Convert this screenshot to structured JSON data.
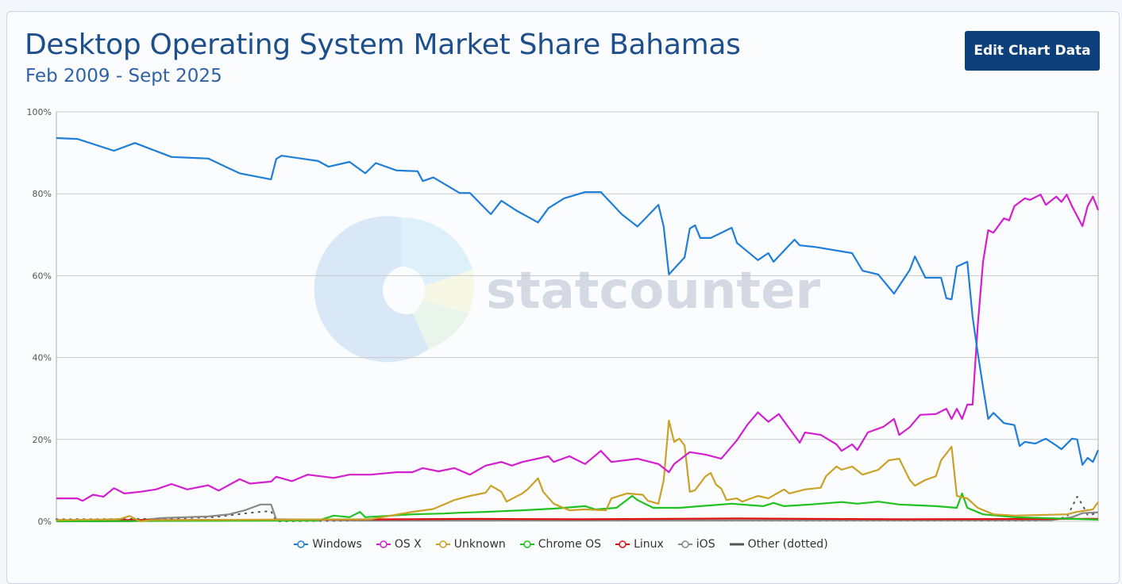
{
  "header": {
    "title": "Desktop Operating System Market Share Bahamas",
    "subtitle": "Feb 2009 - Sept 2025",
    "edit_button": "Edit Chart Data"
  },
  "watermark": {
    "logo_text": "statcounter"
  },
  "chart_data": {
    "type": "line",
    "title": "Desktop Operating System Market Share Bahamas",
    "subtitle": "Feb 2009 - Sept 2025",
    "x_unit": "month index from Feb 2009 (0) to Sept 2025 (199)",
    "xlim": [
      0,
      199
    ],
    "ylim": [
      0,
      100
    ],
    "yticks": [
      "0%",
      "20%",
      "40%",
      "60%",
      "80%",
      "100%"
    ],
    "ytick_values": [
      0,
      20,
      40,
      60,
      80,
      100
    ],
    "grid": true,
    "legend_position": "bottom",
    "series": [
      {
        "name": "Windows",
        "color": "#1f7fd8",
        "dotted": false,
        "points": [
          [
            0,
            93.6
          ],
          [
            4,
            93.4
          ],
          [
            11,
            90.5
          ],
          [
            15,
            92.4
          ],
          [
            22,
            89
          ],
          [
            29,
            88.6
          ],
          [
            33,
            86.2
          ],
          [
            35,
            85
          ],
          [
            41,
            83.5
          ],
          [
            42,
            88.5
          ],
          [
            43,
            89.3
          ],
          [
            50,
            88
          ],
          [
            52,
            86.6
          ],
          [
            56,
            87.8
          ],
          [
            59,
            85
          ],
          [
            61,
            87.5
          ],
          [
            65,
            85.7
          ],
          [
            69,
            85.5
          ],
          [
            70,
            83.1
          ],
          [
            72,
            84
          ],
          [
            77,
            80.2
          ],
          [
            79,
            80.2
          ],
          [
            83,
            75
          ],
          [
            85,
            78.3
          ],
          [
            88,
            75.8
          ],
          [
            92,
            73
          ],
          [
            94,
            76.5
          ],
          [
            97,
            78.9
          ],
          [
            101,
            80.4
          ],
          [
            104,
            80.4
          ],
          [
            108,
            75
          ],
          [
            111,
            72
          ],
          [
            115,
            77.3
          ],
          [
            116,
            72
          ],
          [
            117,
            60.3
          ],
          [
            120,
            64.5
          ],
          [
            121,
            71.5
          ],
          [
            122,
            72.3
          ],
          [
            123,
            69.2
          ],
          [
            125,
            69.2
          ],
          [
            129,
            71.7
          ],
          [
            130,
            68
          ],
          [
            134,
            63.8
          ],
          [
            136,
            65.5
          ],
          [
            137,
            63.4
          ],
          [
            141,
            68.8
          ],
          [
            142,
            67.4
          ],
          [
            145,
            67
          ],
          [
            152,
            65.5
          ],
          [
            154,
            61.2
          ],
          [
            157,
            60.3
          ],
          [
            160,
            55.6
          ],
          [
            163,
            61.4
          ],
          [
            164,
            64.7
          ],
          [
            166,
            59.5
          ],
          [
            169,
            59.5
          ],
          [
            170,
            54.5
          ],
          [
            171,
            54.2
          ],
          [
            172,
            62.2
          ],
          [
            174,
            63.4
          ],
          [
            175,
            50
          ],
          [
            176,
            41
          ],
          [
            177,
            32.8
          ],
          [
            178,
            25
          ],
          [
            179,
            26.5
          ],
          [
            181,
            24
          ],
          [
            183,
            23.5
          ],
          [
            184,
            18.4
          ],
          [
            185,
            19.4
          ],
          [
            187,
            19
          ],
          [
            189,
            20.2
          ],
          [
            191,
            18.5
          ],
          [
            192,
            17.6
          ],
          [
            194,
            20.2
          ],
          [
            195,
            20
          ],
          [
            196,
            13.8
          ],
          [
            197,
            15.5
          ],
          [
            198,
            14.5
          ],
          [
            199,
            17.4
          ]
        ]
      },
      {
        "name": "OS X",
        "color": "#d21fcf",
        "dotted": false,
        "points": [
          [
            0,
            5.6
          ],
          [
            4,
            5.6
          ],
          [
            5,
            5
          ],
          [
            7,
            6.5
          ],
          [
            9,
            6
          ],
          [
            11,
            8.1
          ],
          [
            13,
            6.8
          ],
          [
            16,
            7.2
          ],
          [
            19,
            7.8
          ],
          [
            22,
            9.1
          ],
          [
            25,
            7.8
          ],
          [
            29,
            8.8
          ],
          [
            31,
            7.5
          ],
          [
            35,
            10.3
          ],
          [
            37,
            9.2
          ],
          [
            41,
            9.7
          ],
          [
            42,
            10.9
          ],
          [
            45,
            9.8
          ],
          [
            48,
            11.4
          ],
          [
            53,
            10.6
          ],
          [
            56,
            11.4
          ],
          [
            60,
            11.4
          ],
          [
            65,
            12
          ],
          [
            68,
            12
          ],
          [
            70,
            13
          ],
          [
            73,
            12.2
          ],
          [
            76,
            13
          ],
          [
            79,
            11.4
          ],
          [
            82,
            13.6
          ],
          [
            85,
            14.5
          ],
          [
            87,
            13.6
          ],
          [
            89,
            14.5
          ],
          [
            94,
            15.9
          ],
          [
            95,
            14.5
          ],
          [
            98,
            15.9
          ],
          [
            101,
            14
          ],
          [
            104,
            17.2
          ],
          [
            106,
            14.5
          ],
          [
            111,
            15.3
          ],
          [
            115,
            14
          ],
          [
            117,
            12
          ],
          [
            118,
            14
          ],
          [
            121,
            16.9
          ],
          [
            124,
            16.3
          ],
          [
            127,
            15.3
          ],
          [
            130,
            19.8
          ],
          [
            132,
            23.6
          ],
          [
            134,
            26.6
          ],
          [
            136,
            24.3
          ],
          [
            138,
            26.2
          ],
          [
            140,
            22.7
          ],
          [
            142,
            19.2
          ],
          [
            143,
            21.7
          ],
          [
            146,
            21.1
          ],
          [
            149,
            18.8
          ],
          [
            150,
            17.2
          ],
          [
            152,
            18.8
          ],
          [
            153,
            17.4
          ],
          [
            155,
            21.7
          ],
          [
            158,
            23.1
          ],
          [
            160,
            25
          ],
          [
            161,
            21.1
          ],
          [
            163,
            23
          ],
          [
            165,
            26
          ],
          [
            168,
            26.2
          ],
          [
            170,
            27.5
          ],
          [
            171,
            25
          ],
          [
            172,
            27.5
          ],
          [
            173,
            25
          ],
          [
            174,
            28.5
          ],
          [
            175,
            28.5
          ],
          [
            176,
            47.9
          ],
          [
            177,
            63.4
          ],
          [
            178,
            71.1
          ],
          [
            179,
            70.5
          ],
          [
            181,
            74
          ],
          [
            182,
            73.5
          ],
          [
            183,
            77
          ],
          [
            185,
            78.9
          ],
          [
            186,
            78.5
          ],
          [
            188,
            79.8
          ],
          [
            189,
            77.3
          ],
          [
            191,
            79.3
          ],
          [
            192,
            78
          ],
          [
            193,
            79.8
          ],
          [
            194,
            77
          ],
          [
            196,
            72.1
          ],
          [
            197,
            77
          ],
          [
            198,
            79.3
          ],
          [
            199,
            76
          ]
        ]
      },
      {
        "name": "Unknown",
        "color": "#c9a227",
        "dotted": false,
        "points": [
          [
            0,
            0.3
          ],
          [
            12,
            0.5
          ],
          [
            14,
            1.3
          ],
          [
            16,
            0
          ],
          [
            18,
            0.3
          ],
          [
            60,
            0.5
          ],
          [
            68,
            2.3
          ],
          [
            72,
            3
          ],
          [
            76,
            5.2
          ],
          [
            79,
            6.2
          ],
          [
            82,
            7
          ],
          [
            83,
            8.7
          ],
          [
            85,
            7.2
          ],
          [
            86,
            4.8
          ],
          [
            89,
            6.8
          ],
          [
            90,
            7.8
          ],
          [
            92,
            10.5
          ],
          [
            93,
            7.2
          ],
          [
            95,
            4.3
          ],
          [
            98,
            2.7
          ],
          [
            101,
            2.9
          ],
          [
            105,
            2.7
          ],
          [
            106,
            5.6
          ],
          [
            109,
            6.8
          ],
          [
            112,
            6.5
          ],
          [
            113,
            5
          ],
          [
            115,
            4.3
          ],
          [
            116,
            10
          ],
          [
            117,
            24.6
          ],
          [
            118,
            19.4
          ],
          [
            119,
            20.2
          ],
          [
            120,
            18.5
          ],
          [
            121,
            7.2
          ],
          [
            122,
            7.6
          ],
          [
            124,
            11
          ],
          [
            125,
            11.8
          ],
          [
            126,
            9
          ],
          [
            127,
            8
          ],
          [
            128,
            5.2
          ],
          [
            130,
            5.6
          ],
          [
            131,
            4.8
          ],
          [
            134,
            6.2
          ],
          [
            136,
            5.6
          ],
          [
            139,
            7.8
          ],
          [
            140,
            6.8
          ],
          [
            143,
            7.8
          ],
          [
            146,
            8.2
          ],
          [
            147,
            11
          ],
          [
            149,
            13.4
          ],
          [
            150,
            12.6
          ],
          [
            152,
            13.4
          ],
          [
            154,
            11.4
          ],
          [
            157,
            12.6
          ],
          [
            159,
            14.9
          ],
          [
            161,
            15.3
          ],
          [
            163,
            10.1
          ],
          [
            164,
            8.7
          ],
          [
            166,
            10.1
          ],
          [
            168,
            11
          ],
          [
            169,
            14.9
          ],
          [
            171,
            18.2
          ],
          [
            172,
            6.2
          ],
          [
            174,
            5.6
          ],
          [
            176,
            3.3
          ],
          [
            179,
            1.7
          ],
          [
            183,
            1.4
          ],
          [
            193,
            1.7
          ],
          [
            195,
            2.3
          ],
          [
            198,
            2.9
          ],
          [
            199,
            4.7
          ]
        ]
      },
      {
        "name": "Chrome OS",
        "color": "#1fc21f",
        "dotted": false,
        "points": [
          [
            0,
            0
          ],
          [
            50,
            0.2
          ],
          [
            53,
            1.4
          ],
          [
            56,
            1
          ],
          [
            58,
            2.3
          ],
          [
            59,
            1
          ],
          [
            64,
            1.4
          ],
          [
            68,
            1.7
          ],
          [
            74,
            1.9
          ],
          [
            77,
            2.1
          ],
          [
            82,
            2.3
          ],
          [
            89,
            2.7
          ],
          [
            95,
            3.1
          ],
          [
            101,
            3.7
          ],
          [
            103,
            2.9
          ],
          [
            107,
            3.3
          ],
          [
            110,
            6.2
          ],
          [
            111,
            5.2
          ],
          [
            114,
            3.3
          ],
          [
            119,
            3.3
          ],
          [
            123,
            3.7
          ],
          [
            129,
            4.3
          ],
          [
            135,
            3.7
          ],
          [
            137,
            4.5
          ],
          [
            139,
            3.7
          ],
          [
            144,
            4.1
          ],
          [
            150,
            4.7
          ],
          [
            153,
            4.3
          ],
          [
            157,
            4.8
          ],
          [
            161,
            4.1
          ],
          [
            168,
            3.7
          ],
          [
            172,
            3.3
          ],
          [
            173,
            6.8
          ],
          [
            174,
            3.3
          ],
          [
            177,
            1.7
          ],
          [
            183,
            1
          ],
          [
            199,
            0.4
          ]
        ]
      },
      {
        "name": "Linux",
        "color": "#e01010",
        "dotted": false,
        "points": [
          [
            0,
            0.3
          ],
          [
            50,
            0.4
          ],
          [
            80,
            0.6
          ],
          [
            100,
            0.5
          ],
          [
            130,
            0.7
          ],
          [
            160,
            0.5
          ],
          [
            199,
            0.6
          ]
        ]
      },
      {
        "name": "iOS",
        "color": "#888888",
        "dotted": false,
        "points": [
          [
            0,
            0
          ],
          [
            14,
            0
          ],
          [
            20,
            0.8
          ],
          [
            29,
            1.2
          ],
          [
            33,
            1.7
          ],
          [
            36,
            2.7
          ],
          [
            39,
            4.1
          ],
          [
            41,
            4.1
          ],
          [
            42,
            0.5
          ],
          [
            60,
            0.2
          ],
          [
            190,
            0.3
          ],
          [
            194,
            1
          ],
          [
            196,
            2
          ],
          [
            199,
            2.2
          ]
        ]
      },
      {
        "name": "Other (dotted)",
        "color": "#555555",
        "dotted": true,
        "points": [
          [
            0,
            0.5
          ],
          [
            20,
            0.6
          ],
          [
            30,
            1
          ],
          [
            38,
            2.2
          ],
          [
            41,
            2.5
          ],
          [
            42,
            0
          ],
          [
            60,
            0.2
          ],
          [
            150,
            0.2
          ],
          [
            188,
            0.2
          ],
          [
            193,
            1
          ],
          [
            195,
            6
          ],
          [
            196,
            4
          ],
          [
            197,
            1.5
          ],
          [
            199,
            2
          ]
        ]
      }
    ]
  }
}
